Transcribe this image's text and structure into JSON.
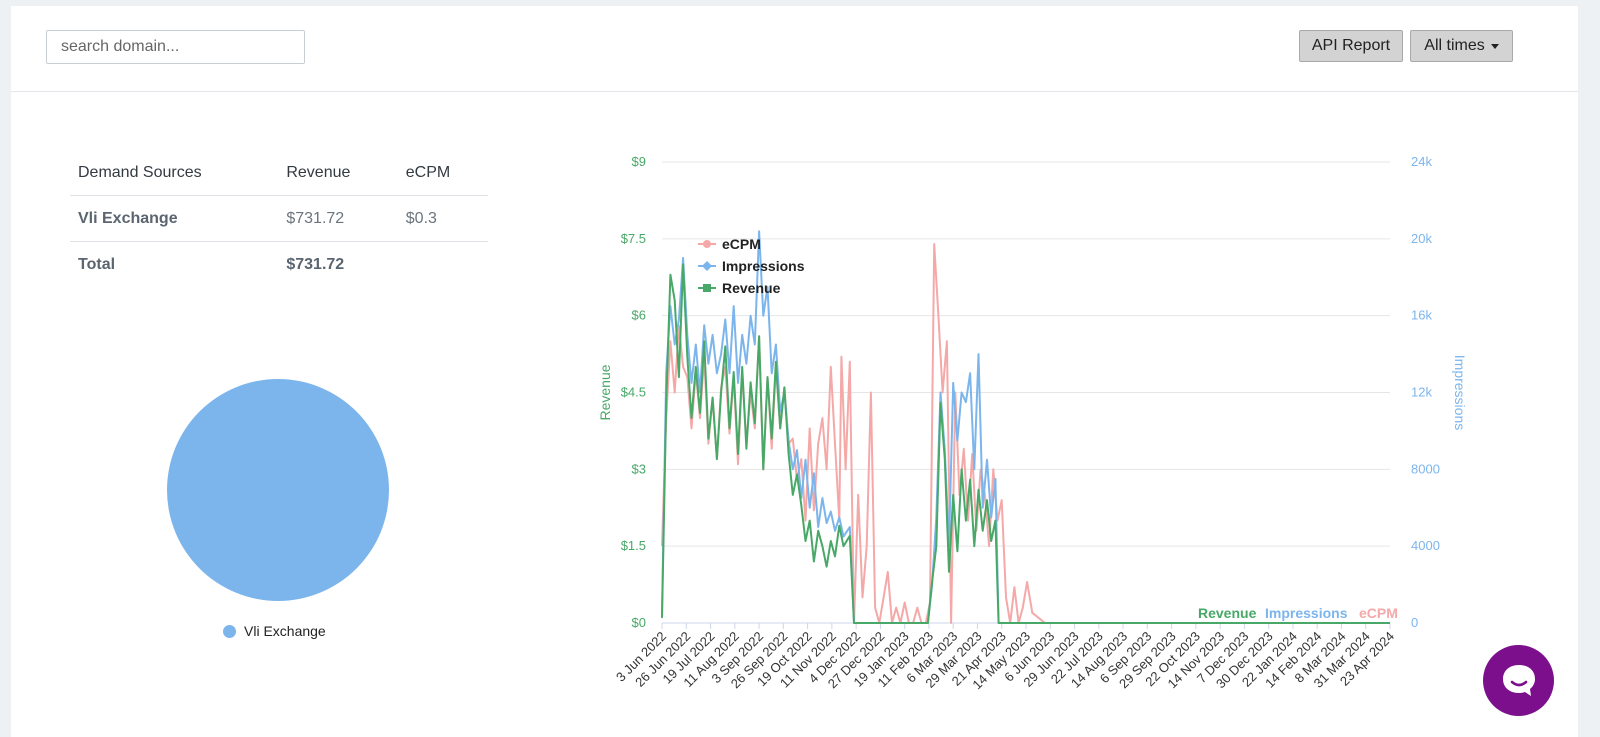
{
  "search": {
    "placeholder": "search domain..."
  },
  "toolbar": {
    "api_report_label": "API Report",
    "range_label": "All times"
  },
  "table": {
    "headers": [
      "Demand Sources",
      "Revenue",
      "eCPM"
    ],
    "rows": [
      {
        "source": "Vli Exchange",
        "revenue": "$731.72",
        "ecpm": "$0.3"
      }
    ],
    "total": {
      "label": "Total",
      "revenue": "$731.72"
    }
  },
  "pie": {
    "slices": [
      {
        "name": "Vli Exchange",
        "value": 100,
        "color": "#7cb5ec"
      }
    ]
  },
  "colors": {
    "revenue": "#48a868",
    "impressions": "#7cb5ec",
    "ecpm": "#f4a9a8",
    "grid": "#e6e6e6"
  },
  "chart_data": {
    "type": "line",
    "legend": [
      "eCPM",
      "Impressions",
      "Revenue"
    ],
    "bottom_legend": [
      "Revenue",
      "Impressions",
      "eCPM"
    ],
    "y_left": {
      "label": "Revenue",
      "range": [
        0,
        9
      ],
      "ticks": [
        "$0",
        "$1.5",
        "$3",
        "$4.5",
        "$6",
        "$7.5",
        "$9"
      ]
    },
    "y_right": {
      "label": "Impressions",
      "range": [
        0,
        24000
      ],
      "ticks": [
        "0",
        "4000",
        "8000",
        "12k",
        "16k",
        "20k",
        "24k"
      ]
    },
    "x_ticks": [
      "3 Jun 2022",
      "26 Jun 2022",
      "19 Jul 2022",
      "11 Aug 2022",
      "3 Sep 2022",
      "26 Sep 2022",
      "19 Oct 2022",
      "11 Nov 2022",
      "4 Dec 2022",
      "27 Dec 2022",
      "19 Jan 2023",
      "11 Feb 2023",
      "6 Mar 2023",
      "29 Mar 2023",
      "21 Apr 2023",
      "14 May 2023",
      "6 Jun 2023",
      "29 Jun 2023",
      "22 Jul 2023",
      "14 Aug 2023",
      "6 Sep 2023",
      "29 Sep 2023",
      "22 Oct 2023",
      "14 Nov 2023",
      "7 Dec 2023",
      "30 Dec 2023",
      "22 Jan 2024",
      "14 Feb 2024",
      "8 Mar 2024",
      "31 Mar 2024",
      "23 Apr 2024"
    ],
    "series": [
      {
        "name": "Revenue",
        "axis": "left",
        "color": "#48a868",
        "x": [
          "3 Jun 2022",
          "7 Jun 2022",
          "11 Jun 2022",
          "15 Jun 2022",
          "19 Jun 2022",
          "23 Jun 2022",
          "27 Jun 2022",
          "1 Jul 2022",
          "5 Jul 2022",
          "9 Jul 2022",
          "13 Jul 2022",
          "17 Jul 2022",
          "21 Jul 2022",
          "25 Jul 2022",
          "29 Jul 2022",
          "2 Aug 2022",
          "6 Aug 2022",
          "10 Aug 2022",
          "14 Aug 2022",
          "18 Aug 2022",
          "22 Aug 2022",
          "26 Aug 2022",
          "30 Aug 2022",
          "3 Sep 2022",
          "7 Sep 2022",
          "11 Sep 2022",
          "15 Sep 2022",
          "19 Sep 2022",
          "23 Sep 2022",
          "27 Sep 2022",
          "1 Oct 2022",
          "5 Oct 2022",
          "9 Oct 2022",
          "13 Oct 2022",
          "17 Oct 2022",
          "21 Oct 2022",
          "25 Oct 2022",
          "29 Oct 2022",
          "2 Nov 2022",
          "6 Nov 2022",
          "10 Nov 2022",
          "14 Nov 2022",
          "18 Nov 2022",
          "22 Nov 2022",
          "28 Nov 2022",
          "2 Dec 2022",
          "10 Feb 2023",
          "14 Feb 2023",
          "18 Feb 2023",
          "22 Feb 2023",
          "26 Feb 2023",
          "2 Mar 2023",
          "6 Mar 2023",
          "10 Mar 2023",
          "14 Mar 2023",
          "18 Mar 2023",
          "22 Mar 2023",
          "26 Mar 2023",
          "30 Mar 2023",
          "3 Apr 2023",
          "7 Apr 2023",
          "11 Apr 2023",
          "15 Apr 2023",
          "18 Apr 2023",
          "20 Apr 2023",
          "23 Apr 2024"
        ],
        "values": [
          0.1,
          4.3,
          6.8,
          6.3,
          4.8,
          7.0,
          5.2,
          4.0,
          5.0,
          4.1,
          5.5,
          3.6,
          4.4,
          3.2,
          4.5,
          5.4,
          3.8,
          4.9,
          3.3,
          5.0,
          3.4,
          4.7,
          3.9,
          5.6,
          3.0,
          4.8,
          3.6,
          5.1,
          3.8,
          4.6,
          3.3,
          2.5,
          2.9,
          2.3,
          1.6,
          2.0,
          1.2,
          1.8,
          1.5,
          1.1,
          1.6,
          1.3,
          1.9,
          1.5,
          1.7,
          0.0,
          0.0,
          0.8,
          1.5,
          4.3,
          3.2,
          1.0,
          2.5,
          1.4,
          3.0,
          2.0,
          2.8,
          1.5,
          2.6,
          1.8,
          2.4,
          1.6,
          2.0,
          0.0,
          0.0,
          0.0
        ]
      },
      {
        "name": "Impressions",
        "axis": "right",
        "color": "#7cb5ec",
        "x": [
          "3 Jun 2022",
          "7 Jun 2022",
          "11 Jun 2022",
          "15 Jun 2022",
          "19 Jun 2022",
          "23 Jun 2022",
          "27 Jun 2022",
          "1 Jul 2022",
          "5 Jul 2022",
          "9 Jul 2022",
          "13 Jul 2022",
          "17 Jul 2022",
          "21 Jul 2022",
          "25 Jul 2022",
          "29 Jul 2022",
          "2 Aug 2022",
          "6 Aug 2022",
          "10 Aug 2022",
          "14 Aug 2022",
          "18 Aug 2022",
          "22 Aug 2022",
          "26 Aug 2022",
          "30 Aug 2022",
          "3 Sep 2022",
          "7 Sep 2022",
          "11 Sep 2022",
          "15 Sep 2022",
          "19 Sep 2022",
          "23 Sep 2022",
          "27 Sep 2022",
          "1 Oct 2022",
          "5 Oct 2022",
          "9 Oct 2022",
          "13 Oct 2022",
          "17 Oct 2022",
          "21 Oct 2022",
          "25 Oct 2022",
          "29 Oct 2022",
          "2 Nov 2022",
          "6 Nov 2022",
          "10 Nov 2022",
          "14 Nov 2022",
          "18 Nov 2022",
          "22 Nov 2022",
          "28 Nov 2022",
          "2 Dec 2022",
          "10 Feb 2023",
          "14 Feb 2023",
          "18 Feb 2023",
          "22 Feb 2023",
          "26 Feb 2023",
          "2 Mar 2023",
          "6 Mar 2023",
          "10 Mar 2023",
          "14 Mar 2023",
          "18 Mar 2023",
          "22 Mar 2023",
          "26 Mar 2023",
          "30 Mar 2023",
          "3 Apr 2023",
          "7 Apr 2023",
          "11 Apr 2023",
          "15 Apr 2023",
          "18 Apr 2023",
          "20 Apr 2023",
          "23 Apr 2024"
        ],
        "values": [
          500,
          13000,
          16500,
          14500,
          15800,
          19000,
          15000,
          12500,
          14500,
          12000,
          15500,
          13500,
          15000,
          13000,
          14000,
          15800,
          13000,
          16500,
          12500,
          15000,
          13500,
          16000,
          14500,
          20400,
          16000,
          17500,
          13000,
          14500,
          11000,
          12000,
          9500,
          8000,
          9000,
          6500,
          8500,
          6000,
          7800,
          5000,
          6500,
          5200,
          5800,
          4800,
          5500,
          4500,
          5000,
          0,
          0,
          2000,
          5500,
          12000,
          9000,
          4000,
          12500,
          9500,
          12000,
          11500,
          13000,
          8000,
          14000,
          6000,
          8500,
          5500,
          7500,
          0,
          0,
          0
        ]
      },
      {
        "name": "eCPM",
        "axis": "left",
        "color": "#f4a9a8",
        "x": [
          "3 Jun 2022",
          "7 Jun 2022",
          "11 Jun 2022",
          "15 Jun 2022",
          "19 Jun 2022",
          "23 Jun 2022",
          "27 Jun 2022",
          "1 Jul 2022",
          "5 Jul 2022",
          "9 Jul 2022",
          "13 Jul 2022",
          "17 Jul 2022",
          "21 Jul 2022",
          "25 Jul 2022",
          "29 Jul 2022",
          "2 Aug 2022",
          "6 Aug 2022",
          "10 Aug 2022",
          "14 Aug 2022",
          "18 Aug 2022",
          "22 Aug 2022",
          "26 Aug 2022",
          "30 Aug 2022",
          "3 Sep 2022",
          "7 Sep 2022",
          "11 Sep 2022",
          "15 Sep 2022",
          "19 Sep 2022",
          "23 Sep 2022",
          "27 Sep 2022",
          "1 Oct 2022",
          "5 Oct 2022",
          "9 Oct 2022",
          "13 Oct 2022",
          "17 Oct 2022",
          "21 Oct 2022",
          "25 Oct 2022",
          "29 Oct 2022",
          "2 Nov 2022",
          "6 Nov 2022",
          "10 Nov 2022",
          "14 Nov 2022",
          "18 Nov 2022",
          "20 Nov 2022",
          "24 Nov 2022",
          "28 Nov 2022",
          "2 Dec 2022",
          "6 Dec 2022",
          "10 Dec 2022",
          "14 Dec 2022",
          "18 Dec 2022",
          "22 Dec 2022",
          "26 Dec 2022",
          "30 Dec 2022",
          "3 Jan 2023",
          "7 Jan 2023",
          "11 Jan 2023",
          "15 Jan 2023",
          "19 Jan 2023",
          "23 Jan 2023",
          "27 Jan 2023",
          "31 Jan 2023",
          "4 Feb 2023",
          "8 Feb 2023",
          "12 Feb 2023",
          "16 Feb 2023",
          "20 Feb 2023",
          "24 Feb 2023",
          "28 Feb 2023",
          "4 Mar 2023",
          "8 Mar 2023",
          "12 Mar 2023",
          "16 Mar 2023",
          "20 Mar 2023",
          "24 Mar 2023",
          "28 Mar 2023",
          "1 Apr 2023",
          "5 Apr 2023",
          "9 Apr 2023",
          "13 Apr 2023",
          "17 Apr 2023",
          "21 Apr 2023",
          "25 Apr 2023",
          "29 Apr 2023",
          "3 May 2023",
          "7 May 2023",
          "11 May 2023",
          "15 May 2023",
          "20 May 2023",
          "1 Jun 2023",
          "23 Apr 2024"
        ],
        "values": [
          1.5,
          4.0,
          5.5,
          4.5,
          5.8,
          5.0,
          4.8,
          3.8,
          4.9,
          4.0,
          5.2,
          3.5,
          4.4,
          3.2,
          4.6,
          5.0,
          3.7,
          4.8,
          3.1,
          4.9,
          3.5,
          4.5,
          3.8,
          5.6,
          3.0,
          4.8,
          3.4,
          5.0,
          3.8,
          4.6,
          3.5,
          3.6,
          2.8,
          3.2,
          2.0,
          3.8,
          2.2,
          3.5,
          4.0,
          3.0,
          5.0,
          3.5,
          2.0,
          5.2,
          3.0,
          5.1,
          0.0,
          2.5,
          0.5,
          1.5,
          4.5,
          0.3,
          0.0,
          0.5,
          1.0,
          0.0,
          0.3,
          0.0,
          0.4,
          0.0,
          0.0,
          0.3,
          0.0,
          0.0,
          0.4,
          7.4,
          6.0,
          4.5,
          5.5,
          0.0,
          4.5,
          2.5,
          3.4,
          2.0,
          3.3,
          1.8,
          3.0,
          2.5,
          1.5,
          3.0,
          2.0,
          2.4,
          0.5,
          0.0,
          0.7,
          0.0,
          0.3,
          0.8,
          0.2,
          0.0,
          0.0
        ]
      }
    ]
  }
}
